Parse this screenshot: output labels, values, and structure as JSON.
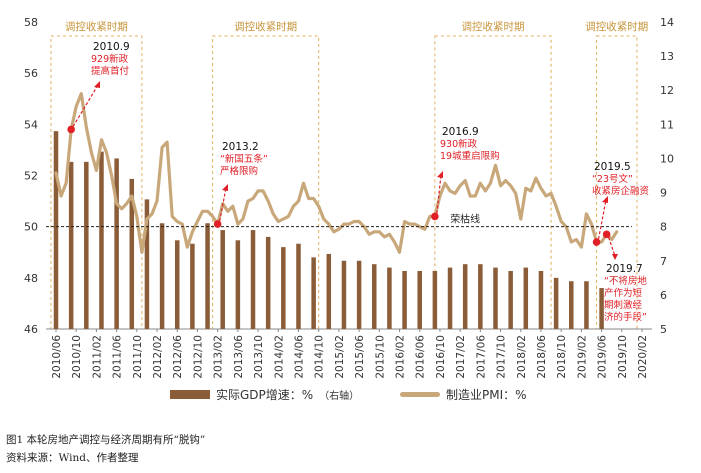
{
  "chart_data": {
    "type": "bar+line",
    "x_labels": [
      "2010/06",
      "2010/10",
      "2011/02",
      "2011/06",
      "2011/10",
      "2012/02",
      "2012/06",
      "2012/10",
      "2013/02",
      "2013/06",
      "2013/10",
      "2014/02",
      "2014/06",
      "2014/10",
      "2015/02",
      "2015/06",
      "2015/10",
      "2016/02",
      "2016/06",
      "2016/10",
      "2017/02",
      "2017/06",
      "2017/10",
      "2018/02",
      "2018/06",
      "2018/10",
      "2019/02",
      "2019/06",
      "2019/10",
      "2020/02"
    ],
    "left_axis": {
      "min": 46,
      "max": 58,
      "ticks": [
        "46",
        "48",
        "50",
        "52",
        "54",
        "56",
        "58"
      ]
    },
    "right_axis": {
      "min": 5,
      "max": 14,
      "ticks": [
        "5",
        "6",
        "7",
        "8",
        "9",
        "10",
        "11",
        "12",
        "13",
        "14"
      ]
    },
    "gdp_series": {
      "name": "实际GDP增速：%",
      "name_suffix": "（右轴）",
      "color": "#8a5c37",
      "points": [
        {
          "x": "2010/06",
          "v": 10.8
        },
        {
          "x": "2010/09",
          "v": 9.9
        },
        {
          "x": "2010/12",
          "v": 9.9
        },
        {
          "x": "2011/03",
          "v": 10.2
        },
        {
          "x": "2011/06",
          "v": 10.0
        },
        {
          "x": "2011/09",
          "v": 9.4
        },
        {
          "x": "2011/12",
          "v": 8.8
        },
        {
          "x": "2012/03",
          "v": 8.1
        },
        {
          "x": "2012/06",
          "v": 7.6
        },
        {
          "x": "2012/09",
          "v": 7.5
        },
        {
          "x": "2012/12",
          "v": 8.1
        },
        {
          "x": "2013/03",
          "v": 7.9
        },
        {
          "x": "2013/06",
          "v": 7.6
        },
        {
          "x": "2013/09",
          "v": 7.9
        },
        {
          "x": "2013/12",
          "v": 7.7
        },
        {
          "x": "2014/03",
          "v": 7.4
        },
        {
          "x": "2014/06",
          "v": 7.5
        },
        {
          "x": "2014/09",
          "v": 7.1
        },
        {
          "x": "2014/12",
          "v": 7.2
        },
        {
          "x": "2015/03",
          "v": 7.0
        },
        {
          "x": "2015/06",
          "v": 7.0
        },
        {
          "x": "2015/09",
          "v": 6.9
        },
        {
          "x": "2015/12",
          "v": 6.8
        },
        {
          "x": "2016/03",
          "v": 6.7
        },
        {
          "x": "2016/06",
          "v": 6.7
        },
        {
          "x": "2016/09",
          "v": 6.7
        },
        {
          "x": "2016/12",
          "v": 6.8
        },
        {
          "x": "2017/03",
          "v": 6.9
        },
        {
          "x": "2017/06",
          "v": 6.9
        },
        {
          "x": "2017/09",
          "v": 6.8
        },
        {
          "x": "2017/12",
          "v": 6.7
        },
        {
          "x": "2018/03",
          "v": 6.8
        },
        {
          "x": "2018/06",
          "v": 6.7
        },
        {
          "x": "2018/09",
          "v": 6.5
        },
        {
          "x": "2018/12",
          "v": 6.4
        },
        {
          "x": "2019/03",
          "v": 6.4
        },
        {
          "x": "2019/06",
          "v": 6.2
        }
      ]
    },
    "pmi_series": {
      "name": "制造业PMI：%",
      "color": "#c8a87a",
      "points": [
        {
          "x": "2010/06",
          "v": 52.1
        },
        {
          "x": "2010/07",
          "v": 51.2
        },
        {
          "x": "2010/08",
          "v": 51.7
        },
        {
          "x": "2010/09",
          "v": 53.8
        },
        {
          "x": "2010/10",
          "v": 54.7
        },
        {
          "x": "2010/11",
          "v": 55.2
        },
        {
          "x": "2010/12",
          "v": 53.9
        },
        {
          "x": "2011/01",
          "v": 52.9
        },
        {
          "x": "2011/02",
          "v": 52.2
        },
        {
          "x": "2011/03",
          "v": 53.4
        },
        {
          "x": "2011/04",
          "v": 52.9
        },
        {
          "x": "2011/05",
          "v": 52.0
        },
        {
          "x": "2011/06",
          "v": 50.9
        },
        {
          "x": "2011/07",
          "v": 50.7
        },
        {
          "x": "2011/08",
          "v": 50.9
        },
        {
          "x": "2011/09",
          "v": 51.2
        },
        {
          "x": "2011/10",
          "v": 50.4
        },
        {
          "x": "2011/11",
          "v": 49.0
        },
        {
          "x": "2011/12",
          "v": 50.3
        },
        {
          "x": "2012/01",
          "v": 50.5
        },
        {
          "x": "2012/02",
          "v": 51.0
        },
        {
          "x": "2012/03",
          "v": 53.1
        },
        {
          "x": "2012/04",
          "v": 53.3
        },
        {
          "x": "2012/05",
          "v": 50.4
        },
        {
          "x": "2012/06",
          "v": 50.2
        },
        {
          "x": "2012/07",
          "v": 50.1
        },
        {
          "x": "2012/08",
          "v": 49.2
        },
        {
          "x": "2012/09",
          "v": 49.8
        },
        {
          "x": "2012/10",
          "v": 50.2
        },
        {
          "x": "2012/11",
          "v": 50.6
        },
        {
          "x": "2012/12",
          "v": 50.6
        },
        {
          "x": "2013/01",
          "v": 50.4
        },
        {
          "x": "2013/02",
          "v": 50.1
        },
        {
          "x": "2013/03",
          "v": 50.9
        },
        {
          "x": "2013/04",
          "v": 50.6
        },
        {
          "x": "2013/05",
          "v": 50.8
        },
        {
          "x": "2013/06",
          "v": 50.1
        },
        {
          "x": "2013/07",
          "v": 50.3
        },
        {
          "x": "2013/08",
          "v": 51.0
        },
        {
          "x": "2013/09",
          "v": 51.1
        },
        {
          "x": "2013/10",
          "v": 51.4
        },
        {
          "x": "2013/11",
          "v": 51.4
        },
        {
          "x": "2013/12",
          "v": 51.0
        },
        {
          "x": "2014/01",
          "v": 50.5
        },
        {
          "x": "2014/02",
          "v": 50.2
        },
        {
          "x": "2014/03",
          "v": 50.3
        },
        {
          "x": "2014/04",
          "v": 50.4
        },
        {
          "x": "2014/05",
          "v": 50.8
        },
        {
          "x": "2014/06",
          "v": 51.0
        },
        {
          "x": "2014/07",
          "v": 51.7
        },
        {
          "x": "2014/08",
          "v": 51.1
        },
        {
          "x": "2014/09",
          "v": 51.1
        },
        {
          "x": "2014/10",
          "v": 50.8
        },
        {
          "x": "2014/11",
          "v": 50.3
        },
        {
          "x": "2014/12",
          "v": 50.1
        },
        {
          "x": "2015/01",
          "v": 49.8
        },
        {
          "x": "2015/02",
          "v": 49.9
        },
        {
          "x": "2015/03",
          "v": 50.1
        },
        {
          "x": "2015/04",
          "v": 50.1
        },
        {
          "x": "2015/05",
          "v": 50.2
        },
        {
          "x": "2015/06",
          "v": 50.2
        },
        {
          "x": "2015/07",
          "v": 50.0
        },
        {
          "x": "2015/08",
          "v": 49.7
        },
        {
          "x": "2015/09",
          "v": 49.8
        },
        {
          "x": "2015/10",
          "v": 49.8
        },
        {
          "x": "2015/11",
          "v": 49.6
        },
        {
          "x": "2015/12",
          "v": 49.7
        },
        {
          "x": "2016/01",
          "v": 49.4
        },
        {
          "x": "2016/02",
          "v": 49.0
        },
        {
          "x": "2016/03",
          "v": 50.2
        },
        {
          "x": "2016/04",
          "v": 50.1
        },
        {
          "x": "2016/05",
          "v": 50.1
        },
        {
          "x": "2016/06",
          "v": 50.0
        },
        {
          "x": "2016/07",
          "v": 49.9
        },
        {
          "x": "2016/08",
          "v": 50.4
        },
        {
          "x": "2016/09",
          "v": 50.4
        },
        {
          "x": "2016/10",
          "v": 51.2
        },
        {
          "x": "2016/11",
          "v": 51.7
        },
        {
          "x": "2016/12",
          "v": 51.4
        },
        {
          "x": "2017/01",
          "v": 51.3
        },
        {
          "x": "2017/02",
          "v": 51.6
        },
        {
          "x": "2017/03",
          "v": 51.8
        },
        {
          "x": "2017/04",
          "v": 51.2
        },
        {
          "x": "2017/05",
          "v": 51.2
        },
        {
          "x": "2017/06",
          "v": 51.7
        },
        {
          "x": "2017/07",
          "v": 51.4
        },
        {
          "x": "2017/08",
          "v": 51.7
        },
        {
          "x": "2017/09",
          "v": 52.4
        },
        {
          "x": "2017/10",
          "v": 51.6
        },
        {
          "x": "2017/11",
          "v": 51.8
        },
        {
          "x": "2017/12",
          "v": 51.6
        },
        {
          "x": "2018/01",
          "v": 51.3
        },
        {
          "x": "2018/02",
          "v": 50.3
        },
        {
          "x": "2018/03",
          "v": 51.5
        },
        {
          "x": "2018/04",
          "v": 51.4
        },
        {
          "x": "2018/05",
          "v": 51.9
        },
        {
          "x": "2018/06",
          "v": 51.5
        },
        {
          "x": "2018/07",
          "v": 51.2
        },
        {
          "x": "2018/08",
          "v": 51.3
        },
        {
          "x": "2018/09",
          "v": 50.8
        },
        {
          "x": "2018/10",
          "v": 50.2
        },
        {
          "x": "2018/11",
          "v": 50.0
        },
        {
          "x": "2018/12",
          "v": 49.4
        },
        {
          "x": "2019/01",
          "v": 49.5
        },
        {
          "x": "2019/02",
          "v": 49.2
        },
        {
          "x": "2019/03",
          "v": 50.5
        },
        {
          "x": "2019/04",
          "v": 50.1
        },
        {
          "x": "2019/05",
          "v": 49.4
        },
        {
          "x": "2019/06",
          "v": 49.4
        },
        {
          "x": "2019/07",
          "v": 49.7
        },
        {
          "x": "2019/08",
          "v": 49.5
        },
        {
          "x": "2019/09",
          "v": 49.8
        }
      ]
    },
    "reference_line": {
      "label": "荣枯线",
      "value": 50
    },
    "shaded_periods": [
      {
        "label": "调控收紧时期",
        "start": "2010/05",
        "end": "2011/11"
      },
      {
        "label": "调控收紧时期",
        "start": "2013/01",
        "end": "2014/10"
      },
      {
        "label": "调控收紧时期",
        "start": "2016/09",
        "end": "2018/08"
      },
      {
        "label": "调控收紧时期",
        "start": "2019/05",
        "end": "2020/01"
      }
    ],
    "annotations": [
      {
        "date_label": "2010.9",
        "lines": [
          "929新政",
          "提高首付"
        ],
        "x": "2010/09",
        "v": 53.8
      },
      {
        "date_label": "2013.2",
        "lines": [
          "“新国五条”",
          "严格限购"
        ],
        "x": "2013/02",
        "v": 50.1
      },
      {
        "date_label": "2016.9",
        "lines": [
          "930新政",
          "19城重启限购"
        ],
        "x": "2016/09",
        "v": 50.4
      },
      {
        "date_label": "2019.5",
        "lines": [
          "“23号文”",
          "收紧房企融资"
        ],
        "x": "2019/05",
        "v": 49.4
      },
      {
        "date_label": "2019.7",
        "lines": [
          "“不将房地",
          "产作为短",
          "期刺激经",
          "济的手段”"
        ],
        "x": "2019/07",
        "v": 49.7
      }
    ]
  },
  "caption": {
    "figure": "图1   本轮房地产调控与经济周期有所“脱钩”",
    "source": "资料来源：Wind、作者整理"
  }
}
